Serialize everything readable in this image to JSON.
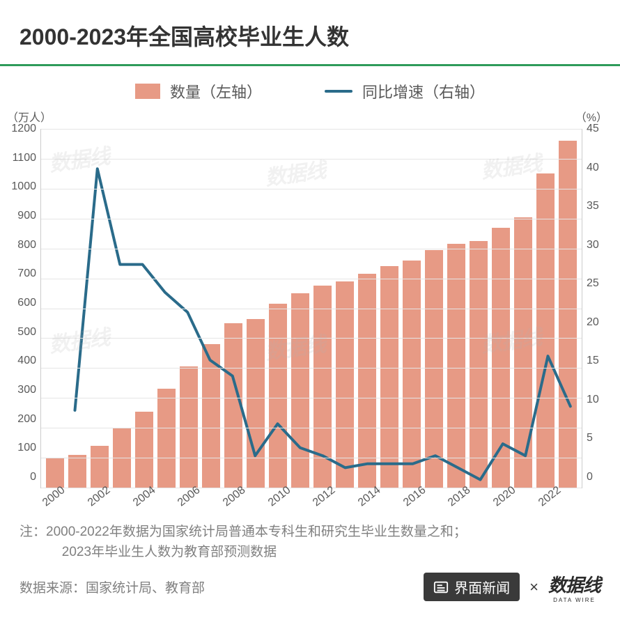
{
  "title": "2000-2023年全国高校毕业生人数",
  "legend": {
    "bar_label": "数量（左轴）",
    "line_label": "同比增速（右轴）"
  },
  "axis_left_unit": "（万人）",
  "axis_right_unit": "（%）",
  "chart": {
    "type": "bar+line",
    "years": [
      2000,
      2001,
      2002,
      2003,
      2004,
      2005,
      2006,
      2007,
      2008,
      2009,
      2010,
      2011,
      2012,
      2013,
      2014,
      2015,
      2016,
      2017,
      2018,
      2019,
      2020,
      2021,
      2022,
      2023
    ],
    "bar_values": [
      100,
      110,
      140,
      200,
      255,
      330,
      405,
      480,
      550,
      565,
      615,
      650,
      675,
      690,
      715,
      740,
      760,
      795,
      815,
      825,
      870,
      905,
      1050,
      1160
    ],
    "line_values": [
      null,
      9.7,
      40,
      28,
      28,
      24.5,
      22,
      16,
      14,
      4,
      8,
      5,
      4,
      2.5,
      3,
      3,
      3,
      4,
      2.5,
      1,
      5.5,
      4,
      16.5,
      10.2
    ],
    "bar_color": "#e79a85",
    "line_color": "#2a6b8a",
    "line_width": 4,
    "background_color": "#ffffff",
    "grid_color": "#e5e5e5",
    "axis_color": "#cccccc",
    "y_left": {
      "min": 0,
      "max": 1200,
      "step": 100
    },
    "y_right": {
      "min": 0,
      "max": 45,
      "step": 5
    },
    "x_tick_step": 2,
    "tick_fontsize": 16,
    "title_fontsize": 32
  },
  "note_prefix": "注：",
  "note_line1": "2000-2022年数据为国家统计局普通本专科生和研究生毕业生数量之和；",
  "note_line2": "2023年毕业生人数为教育部预测数据",
  "source_prefix": "数据来源：",
  "source_text": "国家统计局、教育部",
  "logo_jiemian": "界面新闻",
  "logo_sep": "×",
  "logo_datawire": "数据线",
  "logo_datawire_sub": "DATA WIRE",
  "watermark_text": "数据线"
}
